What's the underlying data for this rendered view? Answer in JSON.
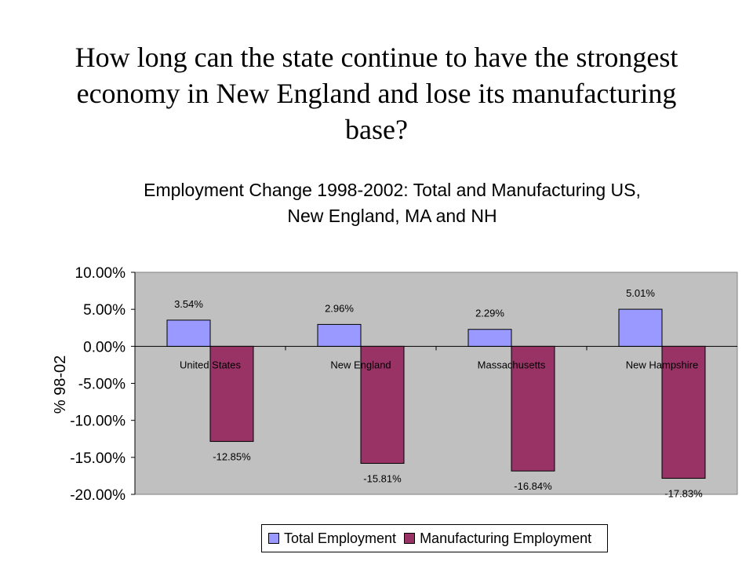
{
  "slide": {
    "title": "How long can the state continue to have the strongest economy in New England and lose its manufacturing base?"
  },
  "colors": {
    "total": "#9999FF",
    "manufacturing": "#993366",
    "plot_background": "#C0C0C0"
  },
  "chart_data": {
    "type": "bar",
    "title_lines": [
      "Employment Change 1998-2002: Total and Manufacturing US,",
      "New England, MA and NH"
    ],
    "xlabel": "",
    "ylabel": "% 98-02",
    "categories": [
      "United States",
      "New  England",
      "Massachusetts",
      "New  Hampshire"
    ],
    "series": [
      {
        "name": "Total Employment",
        "values": [
          3.54,
          2.96,
          2.29,
          5.01
        ],
        "labels": [
          "3.54%",
          "2.96%",
          "2.29%",
          "5.01%"
        ]
      },
      {
        "name": "Manufacturing Employment",
        "values": [
          -12.85,
          -15.81,
          -16.84,
          -17.83
        ],
        "labels": [
          "-12.85%",
          "-15.81%",
          "-16.84%",
          "-17.83%"
        ]
      }
    ],
    "ylim": [
      -20,
      10
    ],
    "yticks": [
      "10.00%",
      "5.00%",
      "0.00%",
      "-5.00%",
      "-10.00%",
      "-15.00%",
      "-20.00%"
    ],
    "grid": false,
    "legend_position": "bottom"
  }
}
